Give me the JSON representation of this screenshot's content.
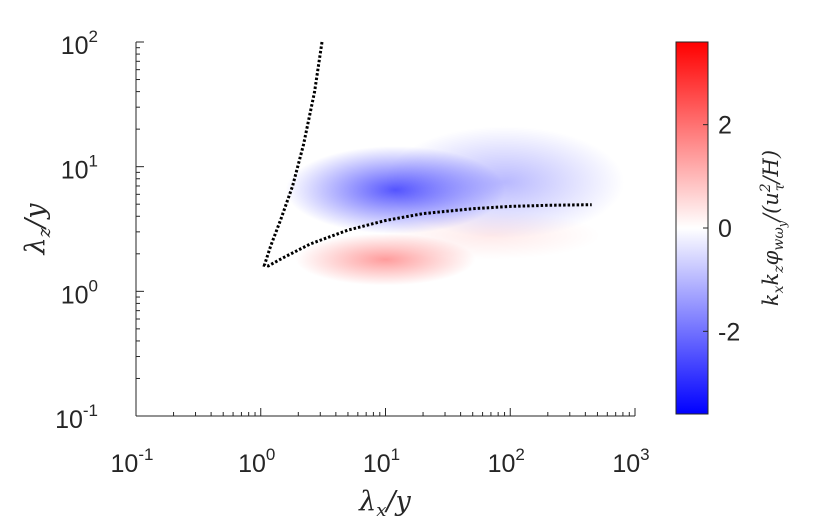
{
  "chart_data": {
    "type": "heatmap",
    "title": "",
    "xlabel": "λx/y",
    "ylabel": "λz/y",
    "x_scale": "log",
    "y_scale": "log",
    "xlim": [
      0.1,
      1000
    ],
    "ylim": [
      0.1,
      100
    ],
    "x_ticks": [
      {
        "base": "10",
        "exp": "-1",
        "value": 0.1
      },
      {
        "base": "10",
        "exp": "0",
        "value": 1
      },
      {
        "base": "10",
        "exp": "1",
        "value": 10
      },
      {
        "base": "10",
        "exp": "2",
        "value": 100
      },
      {
        "base": "10",
        "exp": "3",
        "value": 1000
      }
    ],
    "y_ticks": [
      {
        "base": "10",
        "exp": "-1",
        "value": 0.1
      },
      {
        "base": "10",
        "exp": "0",
        "value": 1
      },
      {
        "base": "10",
        "exp": "1",
        "value": 10
      },
      {
        "base": "10",
        "exp": "2",
        "value": 100
      }
    ],
    "colorbar": {
      "label": "kx kz φwωy/(uτ²/H)",
      "range": [
        -3.6,
        3.6
      ],
      "ticks": [
        -2,
        0,
        2
      ],
      "tick_labels": [
        "-2",
        "0",
        "2"
      ],
      "colormap": [
        "#0000ff",
        "#ffffff",
        "#ff0000"
      ]
    },
    "regions": [
      {
        "sign": "negative",
        "peak_value": -2.4,
        "center": [
          12,
          6.5
        ],
        "spread_log_x": 0.55,
        "spread_log_y": 0.22
      },
      {
        "sign": "negative",
        "peak_value": -1.0,
        "center": [
          90,
          7.5
        ],
        "spread_log_x": 0.6,
        "spread_log_y": 0.28
      },
      {
        "sign": "positive",
        "peak_value": 1.4,
        "center": [
          10,
          1.8
        ],
        "spread_log_x": 0.45,
        "spread_log_y": 0.13
      },
      {
        "sign": "positive",
        "peak_value": 0.3,
        "center": [
          70,
          2.8
        ],
        "spread_log_x": 0.55,
        "spread_log_y": 0.12
      }
    ],
    "contour": {
      "style": "dotted",
      "color": "#000000",
      "points": [
        [
          3.1,
          100
        ],
        [
          2.7,
          40
        ],
        [
          2.2,
          15
        ],
        [
          1.8,
          7
        ],
        [
          1.45,
          3.8
        ],
        [
          1.2,
          2.3
        ],
        [
          1.07,
          1.62
        ],
        [
          1.15,
          1.6
        ],
        [
          1.5,
          1.85
        ],
        [
          2.5,
          2.4
        ],
        [
          5,
          3.1
        ],
        [
          10,
          3.7
        ],
        [
          20,
          4.2
        ],
        [
          50,
          4.6
        ],
        [
          100,
          4.8
        ],
        [
          200,
          4.9
        ],
        [
          450,
          4.95
        ]
      ]
    }
  }
}
